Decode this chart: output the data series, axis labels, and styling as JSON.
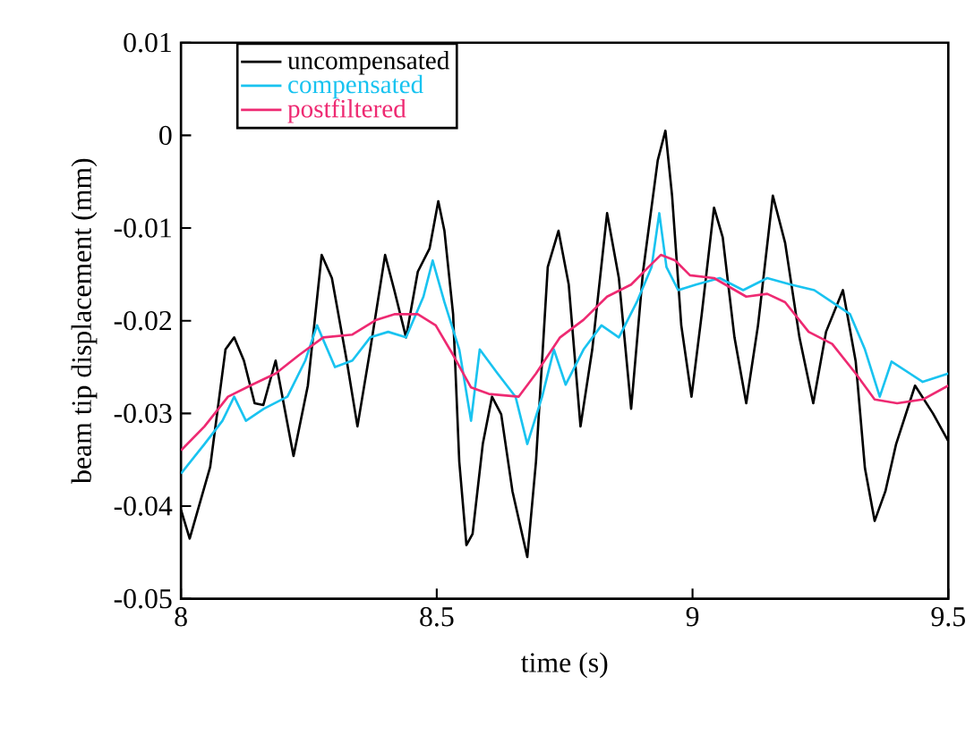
{
  "chart_data": {
    "type": "line",
    "xlabel": "time (s)",
    "ylabel": "beam tip displacement (mm)",
    "xlim": [
      8,
      9.5
    ],
    "xticks": [
      8,
      8.5,
      9,
      9.5
    ],
    "ylim": [
      -0.05,
      0.01
    ],
    "yticks": [
      -0.05,
      -0.04,
      -0.03,
      -0.02,
      -0.01,
      0,
      0.01
    ],
    "legend": "top left",
    "series": [
      {
        "name": "uncompensated",
        "color": "#000000",
        "x": [
          8.0,
          8.017,
          8.057,
          8.087,
          8.104,
          8.123,
          8.144,
          8.161,
          8.185,
          8.22,
          8.248,
          8.275,
          8.295,
          8.324,
          8.345,
          8.37,
          8.399,
          8.417,
          8.44,
          8.463,
          8.486,
          8.503,
          8.515,
          8.532,
          8.544,
          8.558,
          8.57,
          8.59,
          8.608,
          8.626,
          8.648,
          8.677,
          8.694,
          8.717,
          8.738,
          8.758,
          8.781,
          8.804,
          8.833,
          8.856,
          8.88,
          8.903,
          8.932,
          8.947,
          8.96,
          8.978,
          8.998,
          9.018,
          9.042,
          9.059,
          9.082,
          9.105,
          9.128,
          9.157,
          9.181,
          9.209,
          9.236,
          9.261,
          9.294,
          9.319,
          9.337,
          9.356,
          9.377,
          9.398,
          9.435,
          9.47,
          9.5
        ],
        "values": [
          -0.0404,
          -0.0435,
          -0.0358,
          -0.0231,
          -0.0218,
          -0.0243,
          -0.0289,
          -0.0291,
          -0.0243,
          -0.0346,
          -0.027,
          -0.0129,
          -0.0154,
          -0.0243,
          -0.0314,
          -0.0231,
          -0.0129,
          -0.0167,
          -0.0218,
          -0.0147,
          -0.0122,
          -0.0071,
          -0.0103,
          -0.0193,
          -0.0352,
          -0.0442,
          -0.043,
          -0.0333,
          -0.0282,
          -0.0301,
          -0.0384,
          -0.0455,
          -0.0352,
          -0.0142,
          -0.0103,
          -0.0161,
          -0.0314,
          -0.0231,
          -0.0084,
          -0.0154,
          -0.0295,
          -0.0148,
          -0.0027,
          0.0005,
          -0.0065,
          -0.0205,
          -0.0282,
          -0.0193,
          -0.0078,
          -0.011,
          -0.0218,
          -0.0289,
          -0.0205,
          -0.0065,
          -0.0116,
          -0.0218,
          -0.0289,
          -0.0212,
          -0.0167,
          -0.0244,
          -0.0359,
          -0.0416,
          -0.0384,
          -0.0333,
          -0.027,
          -0.03,
          -0.033
        ]
      },
      {
        "name": "compensated",
        "color": "#19c3f0",
        "x": [
          8.0,
          8.046,
          8.081,
          8.104,
          8.127,
          8.162,
          8.208,
          8.243,
          8.266,
          8.301,
          8.335,
          8.37,
          8.405,
          8.44,
          8.474,
          8.492,
          8.515,
          8.544,
          8.567,
          8.584,
          8.619,
          8.654,
          8.677,
          8.706,
          8.729,
          8.752,
          8.787,
          8.822,
          8.856,
          8.891,
          8.92,
          8.935,
          8.949,
          8.972,
          9.007,
          9.053,
          9.099,
          9.146,
          9.192,
          9.238,
          9.273,
          9.308,
          9.337,
          9.366,
          9.389,
          9.45,
          9.5
        ],
        "values": [
          -0.0365,
          -0.0333,
          -0.0308,
          -0.0282,
          -0.0308,
          -0.0295,
          -0.0282,
          -0.0243,
          -0.0205,
          -0.025,
          -0.0243,
          -0.0218,
          -0.0212,
          -0.0218,
          -0.0174,
          -0.0135,
          -0.018,
          -0.0231,
          -0.0308,
          -0.0231,
          -0.0257,
          -0.0282,
          -0.0333,
          -0.0282,
          -0.0231,
          -0.0269,
          -0.0231,
          -0.0205,
          -0.0218,
          -0.018,
          -0.0142,
          -0.0084,
          -0.0142,
          -0.0167,
          -0.0161,
          -0.0154,
          -0.0167,
          -0.0154,
          -0.0161,
          -0.0167,
          -0.018,
          -0.0193,
          -0.0231,
          -0.0282,
          -0.0244,
          -0.0266,
          -0.0257
        ]
      },
      {
        "name": "postfiltered",
        "color": "#ee2a72",
        "x": [
          8.0,
          8.046,
          8.092,
          8.139,
          8.185,
          8.231,
          8.278,
          8.335,
          8.382,
          8.417,
          8.463,
          8.498,
          8.532,
          8.567,
          8.602,
          8.66,
          8.694,
          8.741,
          8.787,
          8.833,
          8.88,
          8.914,
          8.938,
          8.966,
          8.995,
          9.042,
          9.105,
          9.146,
          9.181,
          9.227,
          9.273,
          9.319,
          9.356,
          9.4,
          9.45,
          9.5
        ],
        "values": [
          -0.034,
          -0.0314,
          -0.0282,
          -0.0269,
          -0.0257,
          -0.0237,
          -0.0218,
          -0.0215,
          -0.0199,
          -0.0193,
          -0.0193,
          -0.0205,
          -0.0237,
          -0.0272,
          -0.0279,
          -0.0282,
          -0.0257,
          -0.0218,
          -0.0199,
          -0.0174,
          -0.0161,
          -0.0142,
          -0.0129,
          -0.0135,
          -0.0151,
          -0.0154,
          -0.0174,
          -0.0171,
          -0.018,
          -0.0212,
          -0.0225,
          -0.0257,
          -0.0285,
          -0.0289,
          -0.0285,
          -0.027
        ]
      }
    ]
  }
}
